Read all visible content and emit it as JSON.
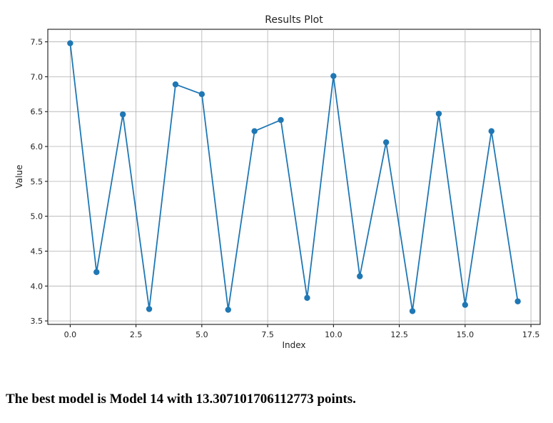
{
  "chart_data": {
    "type": "line",
    "title": "Results Plot",
    "xlabel": "Index",
    "ylabel": "Value",
    "xlim": [
      -0.85,
      17.85
    ],
    "ylim": [
      3.45,
      7.68
    ],
    "grid": true,
    "marker": "circle",
    "color": "#1f77b4",
    "x": [
      0,
      1,
      2,
      3,
      4,
      5,
      6,
      7,
      8,
      9,
      10,
      11,
      12,
      13,
      14,
      15,
      16,
      17
    ],
    "y": [
      7.48,
      4.2,
      6.46,
      3.67,
      6.89,
      6.75,
      3.66,
      6.22,
      6.38,
      3.83,
      7.01,
      4.14,
      6.06,
      3.64,
      6.47,
      3.73,
      6.22,
      3.78
    ],
    "xticks": [
      0.0,
      2.5,
      5.0,
      7.5,
      10.0,
      12.5,
      15.0,
      17.5
    ],
    "xtick_labels": [
      "0.0",
      "2.5",
      "5.0",
      "7.5",
      "10.0",
      "12.5",
      "15.0",
      "17.5"
    ],
    "yticks": [
      3.5,
      4.0,
      4.5,
      5.0,
      5.5,
      6.0,
      6.5,
      7.0,
      7.5
    ],
    "ytick_labels": [
      "3.5",
      "4.0",
      "4.5",
      "5.0",
      "5.5",
      "6.0",
      "6.5",
      "7.0",
      "7.5"
    ]
  },
  "result_text": "The best model is Model 14 with 13.307101706112773 points."
}
